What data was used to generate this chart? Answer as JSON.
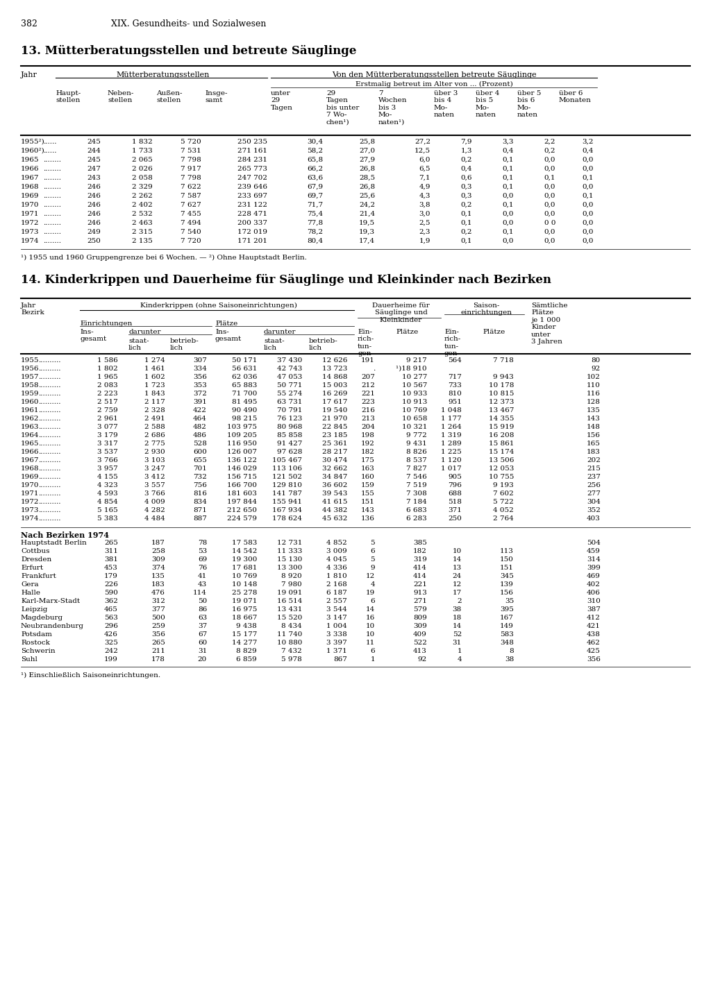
{
  "page_num": "382",
  "page_header": "XIX. Gesundheits- und Sozialwesen",
  "section13_title": "13. Mütterberatungsstellen und betreute Säuglinge",
  "section14_title": "14. Kinderkrippen und Dauerheime für Säuglinge und Kleinkinder nach Bezirken",
  "table1_col_headers": [
    "Jahr",
    "Haupt-\nstellen",
    "Neben-\nstellen",
    "Außen-\nstellen",
    "Insge-\nsamt",
    "unter\n29\nTagen",
    "29\nTagen\nbis unter\n7 Wo-\nchen¹)",
    "7\nWochen\nbis 3\nMo-\nnaten¹)",
    "über 3\nbis 4\nMo-\nnaten",
    "über 4\nbis 5\nMo-\nnaten",
    "über 5\nbis 6\nMo-\nnaten",
    "über 6\nMonaten"
  ],
  "table1_group1_header": "Mütterberatungsstellen",
  "table1_group2_header": "Von den Mütterberatungsstellen betreute Säuglinge",
  "table1_subheader": "Erstmalig betreut im Alter von ... (Prozent)",
  "table1_rows": [
    [
      "1955²)",
      "245",
      "1 832",
      "5 720",
      "250 235",
      "30,4",
      "25,8",
      "27,2",
      "7,9",
      "3,3",
      "2,2",
      "3,2"
    ],
    [
      "1960²)",
      "244",
      "1 733",
      "7 531",
      "271 161",
      "58,2",
      "27,0",
      "12,5",
      "1,3",
      "0,4",
      "0,2",
      "0,4"
    ],
    [
      "1965",
      "245",
      "2 065",
      "7 798",
      "284 231",
      "65,8",
      "27,9",
      "6,0",
      "0,2",
      "0,1",
      "0,0",
      "0,0"
    ],
    [
      "1966",
      "247",
      "2 026",
      "7 917",
      "265 773",
      "66,2",
      "26,8",
      "6,5",
      "0,4",
      "0,1",
      "0,0",
      "0,0"
    ],
    [
      "1967",
      "243",
      "2 058",
      "7 798",
      "247 702",
      "63,6",
      "28,5",
      "7,1",
      "0,6",
      "0,1",
      "0,1",
      "0,1"
    ],
    [
      "1968",
      "246",
      "2 329",
      "7 622",
      "239 646",
      "67,9",
      "26,8",
      "4,9",
      "0,3",
      "0,1",
      "0,0",
      "0,0"
    ],
    [
      "1969",
      "246",
      "2 262",
      "7 587",
      "233 697",
      "69,7",
      "25,6",
      "4,3",
      "0,3",
      "0,0",
      "0,0",
      "0,1"
    ],
    [
      "1970",
      "246",
      "2 402",
      "7 627",
      "231 122",
      "71,7",
      "24,2",
      "3,8",
      "0,2",
      "0,1",
      "0,0",
      "0,0"
    ],
    [
      "1971",
      "246",
      "2 532",
      "7 455",
      "228 471",
      "75,4",
      "21,4",
      "3,0",
      "0,1",
      "0,0",
      "0,0",
      "0,0"
    ],
    [
      "1972",
      "246",
      "2 463",
      "7 494",
      "200 337",
      "77,8",
      "19,5",
      "2,5",
      "0,1",
      "0,0",
      "0 0",
      "0,0"
    ],
    [
      "1973",
      "249",
      "2 315",
      "7 540",
      "172 019",
      "78,2",
      "19,3",
      "2,3",
      "0,2",
      "0,1",
      "0,0",
      "0,0"
    ],
    [
      "1974",
      "250",
      "2 135",
      "7 720",
      "171 201",
      "80,4",
      "17,4",
      "1,9",
      "0,1",
      "0,0",
      "0,0",
      "0,0"
    ]
  ],
  "table1_footnote": "¹) 1955 und 1960 Gruppengrenze bei 6 Wochen. — ²) Ohne Hauptstadt Berlin.",
  "table2_col_headers_main": [
    "Jahr\nBezirk",
    "Kinderkrippen (ohne Saisoneinrichtungen)",
    "",
    "",
    "",
    "",
    "",
    "Dauerheime für\nSäuglinge und\nKleinkinder",
    "",
    "Saison-\neinrichtungen",
    "",
    "Sämtliche\nPlätze\nje 1 000\nKinder\nunter\n3 Jahren"
  ],
  "table2_col_headers_sub1": [
    "Einrichtungen",
    "",
    "Plätze",
    "",
    "",
    ""
  ],
  "table2_col_headers_sub2": [
    "Ins-\ngesamt",
    "darunter",
    "",
    "Ins-\ngesamt",
    "darunter",
    ""
  ],
  "table2_col_headers_sub3": [
    "",
    "staat-\nlich",
    "betrieb-\nlich",
    "",
    "staat-\nlich",
    "betrieb-\nlich",
    "Ein-\nrich-\ntun-\ngen",
    "Plätze",
    "Ein-\nrich-\ntun-\ngen",
    "Plätze",
    ""
  ],
  "table2_rows": [
    [
      "1955",
      "1 586",
      "1 274",
      "307",
      "50 171",
      "37 430",
      "12 626",
      "191",
      "9 217",
      "564",
      "7 718",
      "80"
    ],
    [
      "1956",
      "1 802",
      "1 461",
      "334",
      "56 631",
      "42 743",
      "13 723",
      ".",
      "¹)18 910",
      "",
      "",
      "92"
    ],
    [
      "1957",
      "1 965",
      "1 602",
      "356",
      "62 036",
      "47 053",
      "14 868",
      "207",
      "10 277",
      "717",
      "9 943",
      "102"
    ],
    [
      "1958",
      "2 083",
      "1 723",
      "353",
      "65 883",
      "50 771",
      "15 003",
      "212",
      "10 567",
      "733",
      "10 178",
      "110"
    ],
    [
      "1959",
      "2 223",
      "1 843",
      "372",
      "71 700",
      "55 274",
      "16 269",
      "221",
      "10 933",
      "810",
      "10 815",
      "116"
    ],
    [
      "1960",
      "2 517",
      "2 117",
      "391",
      "81 495",
      "63 731",
      "17 617",
      "223",
      "10 913",
      "951",
      "12 373",
      "128"
    ],
    [
      "1961",
      "2 759",
      "2 328",
      "422",
      "90 490",
      "70 791",
      "19 540",
      "216",
      "10 769",
      "1 048",
      "13 467",
      "135"
    ],
    [
      "1962",
      "2 961",
      "2 491",
      "464",
      "98 215",
      "76 123",
      "21 970",
      "213",
      "10 658",
      "1 177",
      "14 355",
      "143"
    ],
    [
      "1963",
      "3 077",
      "2 588",
      "482",
      "103 975",
      "80 968",
      "22 845",
      "204",
      "10 321",
      "1 264",
      "15 919",
      "148"
    ],
    [
      "1964",
      "3 179",
      "2 686",
      "486",
      "109 205",
      "85 858",
      "23 185",
      "198",
      "9 772",
      "1 319",
      "16 208",
      "156"
    ],
    [
      "1965",
      "3 317",
      "2 775",
      "528",
      "116 950",
      "91 427",
      "25 361",
      "192",
      "9 431",
      "1 289",
      "15 861",
      "165"
    ],
    [
      "1966",
      "3 537",
      "2 930",
      "600",
      "126 007",
      "97 628",
      "28 217",
      "182",
      "8 826",
      "1 225",
      "15 174",
      "183"
    ],
    [
      "1967",
      "3 766",
      "3 103",
      "655",
      "136 122",
      "105 467",
      "30 474",
      "175",
      "8 537",
      "1 120",
      "13 506",
      "202"
    ],
    [
      "1968",
      "3 957",
      "3 247",
      "701",
      "146 029",
      "113 106",
      "32 662",
      "163",
      "7 827",
      "1 017",
      "12 053",
      "215"
    ],
    [
      "1969",
      "4 155",
      "3 412",
      "732",
      "156 715",
      "121 502",
      "34 847",
      "160",
      "7 546",
      "905",
      "10 755",
      "237"
    ],
    [
      "1970",
      "4 323",
      "3 557",
      "756",
      "166 700",
      "129 810",
      "36 602",
      "159",
      "7 519",
      "796",
      "9 193",
      "256"
    ],
    [
      "1971",
      "4 593",
      "3 766",
      "816",
      "181 603",
      "141 787",
      "39 543",
      "155",
      "7 308",
      "688",
      "7 602",
      "277"
    ],
    [
      "1972",
      "4 854",
      "4 009",
      "834",
      "197 844",
      "155 941",
      "41 615",
      "151",
      "7 184",
      "518",
      "5 722",
      "304"
    ],
    [
      "1973",
      "5 165",
      "4 282",
      "871",
      "212 650",
      "167 934",
      "44 382",
      "143",
      "6 683",
      "371",
      "4 052",
      "352"
    ],
    [
      "1974",
      "5 383",
      "4 484",
      "887",
      "224 579",
      "178 624",
      "45 632",
      "136",
      "6 283",
      "250",
      "2 764",
      "403"
    ]
  ],
  "table2_bezirk_header": "Nach Bezirken 1974",
  "table2_bezirk_rows": [
    [
      "Hauptstadt Berlin",
      "265",
      "187",
      "78",
      "17 583",
      "12 731",
      "4 852",
      "5",
      "385",
      "",
      "",
      "504"
    ],
    [
      "Cottbus",
      "311",
      "258",
      "53",
      "14 542",
      "11 333",
      "3 009",
      "6",
      "182",
      "10",
      "113",
      "459"
    ],
    [
      "Dresden",
      "381",
      "309",
      "69",
      "19 300",
      "15 130",
      "4 045",
      "5",
      "319",
      "14",
      "150",
      "314"
    ],
    [
      "Erfurt",
      "453",
      "374",
      "76",
      "17 681",
      "13 300",
      "4 336",
      "9",
      "414",
      "13",
      "151",
      "399"
    ],
    [
      "Frankfurt",
      "179",
      "135",
      "41",
      "10 769",
      "8 920",
      "1 810",
      "12",
      "414",
      "24",
      "345",
      "469"
    ],
    [
      "Gera",
      "226",
      "183",
      "43",
      "10 148",
      "7 980",
      "2 168",
      "4",
      "221",
      "12",
      "139",
      "402"
    ],
    [
      "Halle",
      "590",
      "476",
      "114",
      "25 278",
      "19 091",
      "6 187",
      "19",
      "913",
      "17",
      "156",
      "406"
    ],
    [
      "Karl-Marx-Stadt",
      "362",
      "312",
      "50",
      "19 071",
      "16 514",
      "2 557",
      "6",
      "271",
      "2",
      "35",
      "310"
    ],
    [
      "Leipzig",
      "465",
      "377",
      "86",
      "16 975",
      "13 431",
      "3 544",
      "14",
      "579",
      "38",
      "395",
      "387"
    ],
    [
      "Magdeburg",
      "563",
      "500",
      "63",
      "18 667",
      "15 520",
      "3 147",
      "16",
      "809",
      "18",
      "167",
      "412"
    ],
    [
      "Neubrandenburg",
      "296",
      "259",
      "37",
      "9 438",
      "8 434",
      "1 004",
      "10",
      "309",
      "14",
      "149",
      "421"
    ],
    [
      "Potsdam",
      "426",
      "356",
      "67",
      "15 177",
      "11 740",
      "3 338",
      "10",
      "409",
      "52",
      "583",
      "438"
    ],
    [
      "Rostock",
      "325",
      "265",
      "60",
      "14 277",
      "10 880",
      "3 397",
      "11",
      "522",
      "31",
      "348",
      "462"
    ],
    [
      "Schwerin",
      "242",
      "211",
      "31",
      "8 829",
      "7 432",
      "1 371",
      "6",
      "413",
      "1",
      "8",
      "425"
    ],
    [
      "Suhl",
      "199",
      "178",
      "20",
      "6 859",
      "5 978",
      "867",
      "1",
      "92",
      "4",
      "38",
      "356"
    ]
  ],
  "table2_footnote": "¹) Einschließlich Saisoneinrichtungen."
}
